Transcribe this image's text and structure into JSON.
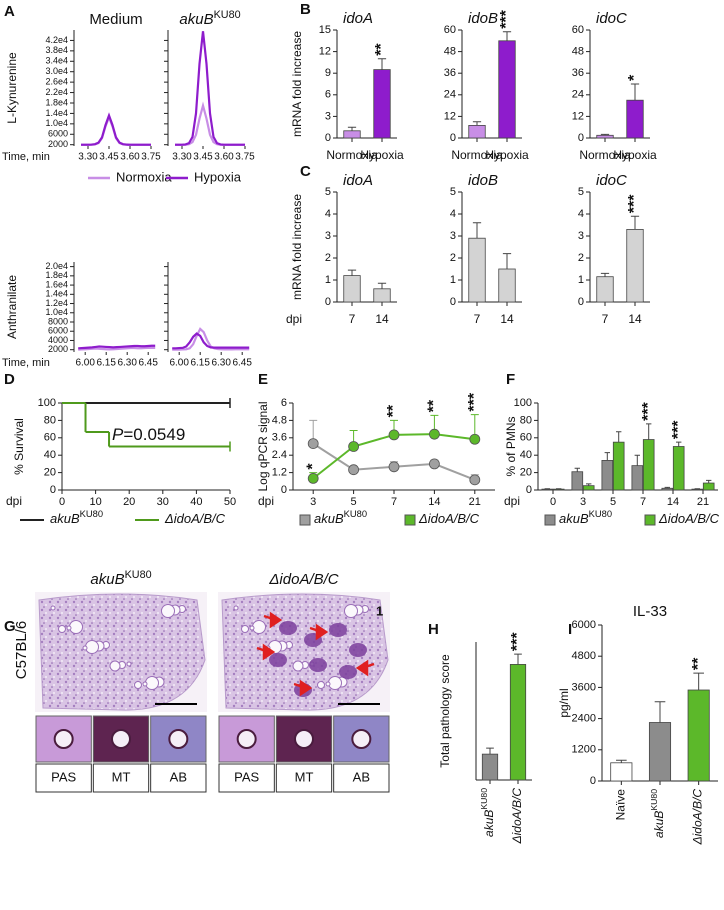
{
  "chart_data": [
    {
      "type": "chromatogram",
      "panel": "A",
      "legend": [
        {
          "name": "Normoxia",
          "color": "#c88ee6"
        },
        {
          "name": "Hypoxia",
          "color": "#8e1ccc"
        }
      ],
      "rows": [
        {
          "ylabel": "L-Kynurenine",
          "xlabel": "Time, min",
          "xlim": [
            3.2,
            3.8
          ],
          "xticks": [
            {
              "value": 3.3,
              "label": "3.30"
            },
            3.45,
            {
              "value": 3.6,
              "label": "3.60"
            },
            3.75
          ],
          "ylim": [
            1500,
            46000
          ],
          "yticks": [
            2000,
            6000,
            {
              "value": 10000,
              "label": "1.0e4"
            },
            {
              "value": 14000,
              "label": "1.4e4"
            },
            {
              "value": 18000,
              "label": "1.8e4"
            },
            {
              "value": 22000,
              "label": "2.2e4"
            },
            {
              "value": 26000,
              "label": "2.6e4"
            },
            {
              "value": 30000,
              "label": "3.0e4"
            },
            {
              "value": 34000,
              "label": "3.4e4"
            },
            {
              "value": 38000,
              "label": "3.8e4"
            },
            {
              "value": 42000,
              "label": "4.2e4"
            }
          ],
          "x": [
            3.25,
            3.275,
            3.3,
            3.325,
            3.35,
            3.375,
            3.4,
            3.425,
            3.45,
            3.475,
            3.5,
            3.525,
            3.55,
            3.575,
            3.6,
            3.625,
            3.65,
            3.675,
            3.7,
            3.725,
            3.75
          ],
          "plots": [
            {
              "title": "Medium",
              "series": [
                [
                  1900,
                  1900,
                  1900,
                  1950,
                  2100,
                  2600,
                  4500,
                  9000,
                  12500,
                  9000,
                  4500,
                  2600,
                  2100,
                  1950,
                  1900,
                  1900,
                  1900,
                  1900,
                  1900,
                  1900,
                  1900
                ],
                [
                  2000,
                  2000,
                  2000,
                  2050,
                  2200,
                  2800,
                  4800,
                  9500,
                  13200,
                  9500,
                  4800,
                  2800,
                  2200,
                  2050,
                  2000,
                  2000,
                  2000,
                  2000,
                  2000,
                  2000,
                  2000
                ]
              ]
            },
            {
              "title": "akuB",
              "title_superscript": "KU80",
              "series": [
                [
                  1900,
                  1900,
                  1900,
                  1950,
                  2200,
                  3000,
                  5800,
                  12000,
                  17000,
                  12000,
                  5800,
                  3000,
                  2200,
                  1950,
                  1900,
                  1900,
                  1900,
                  1900,
                  1900,
                  1900,
                  1900
                ],
                [
                  2000,
                  2000,
                  2000,
                  2100,
                  2600,
                  5000,
                  14000,
                  33000,
                  45500,
                  33000,
                  14000,
                  5000,
                  2600,
                  2100,
                  2000,
                  2000,
                  2000,
                  2000,
                  2000,
                  2000,
                  2000
                ]
              ]
            }
          ]
        },
        {
          "ylabel": "Anthranilate",
          "xlabel": "Time, min",
          "xlim": [
            5.92,
            6.52
          ],
          "xticks": [
            {
              "value": 6.0,
              "label": "6.00"
            },
            6.15,
            {
              "value": 6.3,
              "label": "6.30"
            },
            6.45
          ],
          "ylim": [
            1500,
            21000
          ],
          "yticks": [
            2000,
            4000,
            6000,
            8000,
            {
              "value": 10000,
              "label": "1.0e4"
            },
            {
              "value": 12000,
              "label": "1.2e4"
            },
            {
              "value": 14000,
              "label": "1.4e4"
            },
            {
              "value": 16000,
              "label": "1.6e4"
            },
            {
              "value": 18000,
              "label": "1.8e4"
            },
            {
              "value": 20000,
              "label": "2.0e4"
            }
          ],
          "x": [
            5.95,
            5.975,
            6.0,
            6.025,
            6.05,
            6.075,
            6.1,
            6.125,
            6.15,
            6.175,
            6.2,
            6.225,
            6.25,
            6.275,
            6.3,
            6.325,
            6.35,
            6.375,
            6.4,
            6.425,
            6.45,
            6.475,
            6.5
          ],
          "plots": [
            {
              "series": [
                [
                  2000,
                  2050,
                  2100,
                  2150,
                  2200,
                  2250,
                  2200,
                  2150,
                  2100,
                  2050,
                  2100,
                  2150,
                  2200,
                  2250,
                  2300,
                  2350,
                  2350,
                  2300,
                  2300,
                  2350,
                  2400,
                  2400,
                  2400
                ],
                [
                  2300,
                  2350,
                  2400,
                  2450,
                  2500,
                  2600,
                  2700,
                  2650,
                  2600,
                  2550,
                  2500,
                  2550,
                  2600,
                  2650,
                  2700,
                  2750,
                  2800,
                  2800,
                  2750,
                  2750,
                  2800,
                  2850,
                  2850
                ]
              ]
            },
            {
              "series": [
                [
                  2000,
                  2000,
                  2000,
                  2050,
                  2100,
                  2300,
                  3200,
                  5000,
                  6500,
                  5800,
                  4000,
                  2700,
                  2300,
                  2150,
                  2100,
                  2050,
                  2050,
                  2050,
                  2100,
                  2100,
                  2100,
                  2100,
                  2100
                ],
                [
                  2300,
                  2300,
                  2350,
                  2400,
                  2700,
                  3600,
                  4800,
                  5500,
                  5000,
                  3600,
                  2800,
                  2500,
                  2450,
                  2450,
                  2450,
                  2450,
                  2450,
                  2450,
                  2450,
                  2450,
                  2450,
                  2450,
                  2450
                ]
              ]
            }
          ]
        }
      ]
    },
    {
      "type": "bar-set",
      "panel": "B",
      "ylabel": "mRNA fold increase",
      "categories": [
        "Normoxia",
        "Hypoxia"
      ],
      "colors": [
        "#c88ee6",
        "#8e1ccc"
      ],
      "plots": [
        {
          "title": "idoA",
          "ylim": [
            0,
            15
          ],
          "yticks": [
            0,
            3,
            6,
            9,
            12,
            15
          ],
          "values": [
            1,
            9.5
          ],
          "errors": [
            0.5,
            1.5
          ],
          "annotations": [
            {
              "index": 1,
              "label": "**"
            }
          ]
        },
        {
          "title": "idoB",
          "ylim": [
            0,
            60
          ],
          "yticks": [
            0,
            12,
            24,
            36,
            48,
            60
          ],
          "values": [
            7,
            54
          ],
          "errors": [
            2,
            5
          ],
          "annotations": [
            {
              "index": 1,
              "label": "***"
            }
          ]
        },
        {
          "title": "idoC",
          "ylim": [
            0,
            60
          ],
          "yticks": [
            0,
            12,
            24,
            36,
            48,
            60
          ],
          "values": [
            1.5,
            21
          ],
          "errors": [
            0.5,
            9
          ],
          "annotations": [
            {
              "index": 1,
              "label": "*"
            }
          ]
        }
      ]
    },
    {
      "type": "bar-set",
      "panel": "C",
      "ylabel": "mRNA fold increase",
      "xlabel": "dpi",
      "categories": [
        "7",
        "14"
      ],
      "colors": [
        "#d3d3d3",
        "#d3d3d3"
      ],
      "plots": [
        {
          "title": "idoA",
          "ylim": [
            0,
            5
          ],
          "yticks": [
            0,
            1,
            2,
            3,
            4,
            5
          ],
          "values": [
            1.2,
            0.6
          ],
          "errors": [
            0.25,
            0.25
          ]
        },
        {
          "title": "idoB",
          "ylim": [
            0,
            5
          ],
          "yticks": [
            0,
            1,
            2,
            3,
            4,
            5
          ],
          "values": [
            2.9,
            1.5
          ],
          "errors": [
            0.7,
            0.7
          ]
        },
        {
          "title": "idoC",
          "ylim": [
            0,
            5
          ],
          "yticks": [
            0,
            1,
            2,
            3,
            4,
            5
          ],
          "values": [
            1.15,
            3.3
          ],
          "errors": [
            0.15,
            0.6
          ],
          "annotations": [
            {
              "index": 1,
              "label": "***"
            }
          ]
        }
      ]
    },
    {
      "type": "survival",
      "panel": "D",
      "ylabel": "% Survival",
      "xlabel": "dpi",
      "xlim": [
        0,
        50
      ],
      "xticks": [
        0,
        10,
        20,
        30,
        40,
        50
      ],
      "ylim": [
        0,
        100
      ],
      "yticks": [
        0,
        20,
        40,
        60,
        80,
        100
      ],
      "annotation": {
        "symbol": "P",
        "text": "=0.0549"
      },
      "series": [
        {
          "name": "akuB",
          "name_superscript": "KU80",
          "color": "#222222",
          "x": [
            0,
            50
          ],
          "values": [
            100,
            100
          ]
        },
        {
          "name": "ΔidoA/B/C",
          "color": "#4f9a1c",
          "x": [
            0,
            7,
            14,
            50
          ],
          "values": [
            100,
            66.7,
            50,
            50
          ]
        }
      ]
    },
    {
      "type": "line",
      "panel": "E",
      "ylabel": "Log qPCR signal",
      "xlabel": "dpi",
      "categories": [
        "3",
        "5",
        "7",
        "14",
        "21"
      ],
      "ylim": [
        0,
        6
      ],
      "yticks": [
        0,
        1.2,
        2.4,
        3.6,
        4.8,
        6
      ],
      "series": [
        {
          "name": "akuB",
          "name_superscript": "KU80",
          "color": "#a0a0a0",
          "values": [
            3.2,
            1.4,
            1.6,
            1.8,
            0.7
          ],
          "errors": [
            1.6,
            0.2,
            0.35,
            0.25,
            0.35
          ]
        },
        {
          "name": "ΔidoA/B/C",
          "color": "#5cb82a",
          "values": [
            0.8,
            3.0,
            3.8,
            3.85,
            3.5
          ],
          "errors": [
            0.4,
            1.1,
            1.0,
            1.3,
            1.7
          ]
        }
      ],
      "annotations": [
        {
          "series": 1,
          "index": 0,
          "label": "*"
        },
        {
          "series": 1,
          "index": 2,
          "label": "**"
        },
        {
          "series": 1,
          "index": 3,
          "label": "**"
        },
        {
          "series": 1,
          "index": 4,
          "label": "***"
        }
      ]
    },
    {
      "type": "grouped-bar",
      "panel": "F",
      "ylabel": "% of PMNs",
      "xlabel": "dpi",
      "categories": [
        "0",
        "3",
        "5",
        "7",
        "14",
        "21"
      ],
      "ylim": [
        0,
        100
      ],
      "yticks": [
        0,
        20,
        40,
        60,
        80,
        100
      ],
      "series": [
        {
          "name": "akuB",
          "name_superscript": "KU80",
          "color": "#8c8c8c",
          "values": [
            1,
            21,
            34,
            28,
            2,
            1
          ],
          "errors": [
            0.5,
            4,
            9,
            12,
            1,
            0.5
          ]
        },
        {
          "name": "ΔidoA/B/C",
          "color": "#5cb82a",
          "values": [
            1,
            5,
            55,
            58,
            50,
            8
          ],
          "errors": [
            0.5,
            2,
            12,
            18,
            5,
            3
          ]
        }
      ],
      "annotations": [
        {
          "series": 1,
          "index": 3,
          "label": "***"
        },
        {
          "series": 1,
          "index": 4,
          "label": "***"
        }
      ]
    },
    {
      "type": "bar",
      "panel": "H",
      "ylabel": "Total pathology score",
      "categories": [
        "akuB",
        "ΔidoA/B/C"
      ],
      "category_superscripts": [
        "KU80",
        null
      ],
      "italic_categories": [
        true,
        true
      ],
      "colors": [
        "#8c8c8c",
        "#5cb82a"
      ],
      "ylim": [
        0,
        8
      ],
      "values": [
        1.5,
        6.7
      ],
      "errors": [
        0.35,
        0.6
      ],
      "annotations": [
        {
          "index": 1,
          "label": "***"
        }
      ]
    },
    {
      "type": "bar",
      "panel": "I",
      "title": "IL-33",
      "ylabel": "pg/ml",
      "categories": [
        "Naïve",
        "akuB",
        "ΔidoA/B/C"
      ],
      "category_superscripts": [
        null,
        "KU80",
        null
      ],
      "italic_categories": [
        false,
        true,
        true
      ],
      "colors": [
        "#ffffff",
        "#8c8c8c",
        "#5cb82a"
      ],
      "ylim": [
        0,
        6000
      ],
      "yticks": [
        0,
        1200,
        2400,
        3600,
        4800,
        6000
      ],
      "values": [
        700,
        2250,
        3500
      ],
      "errors": [
        100,
        800,
        650
      ],
      "annotations": [
        {
          "index": 2,
          "label": "**"
        }
      ]
    }
  ],
  "histology": {
    "panel": "G",
    "strain": "C57BL/6",
    "columns": [
      {
        "label": "akuB",
        "label_superscript": "KU80",
        "stains": [
          "PAS",
          "MT",
          "AB"
        ]
      },
      {
        "label": "ΔidoA/B/C",
        "inset_number": "1",
        "stains": [
          "PAS",
          "MT",
          "AB"
        ]
      }
    ]
  }
}
